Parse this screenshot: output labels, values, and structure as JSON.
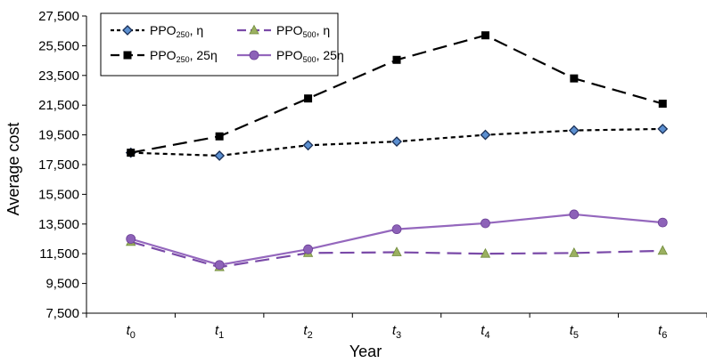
{
  "chart_data": {
    "type": "line",
    "xlabel": "Year",
    "ylabel": "Average cost",
    "categories": [
      {
        "base": "t",
        "sub": "0"
      },
      {
        "base": "t",
        "sub": "1"
      },
      {
        "base": "t",
        "sub": "2"
      },
      {
        "base": "t",
        "sub": "3"
      },
      {
        "base": "t",
        "sub": "4"
      },
      {
        "base": "t",
        "sub": "5"
      },
      {
        "base": "t",
        "sub": "6"
      }
    ],
    "y_ticks": [
      "7,500",
      "9,500",
      "11,500",
      "13,500",
      "15,500",
      "17,500",
      "19,500",
      "21,500",
      "23,500",
      "25,500",
      "27,500"
    ],
    "ylim": [
      7500,
      27500
    ],
    "grid": false,
    "legend_position": "top-left",
    "series": [
      {
        "name": {
          "base": "PPO",
          "sub": "250",
          "suffix": ", η"
        },
        "values": [
          18300,
          18100,
          18800,
          19050,
          19500,
          19800,
          19900
        ],
        "color": "#000000",
        "marker": "diamond",
        "marker_color": "#5b8fd0",
        "line_style": "short-dash"
      },
      {
        "name": {
          "base": "PPO",
          "sub": "250",
          "suffix": ", 25η"
        },
        "values": [
          18300,
          19400,
          21950,
          24550,
          26200,
          23300,
          21600
        ],
        "color": "#000000",
        "marker": "square",
        "marker_color": "#000000",
        "line_style": "long-dash"
      },
      {
        "name": {
          "base": "PPO",
          "sub": "500",
          "suffix": ", η"
        },
        "values": [
          12300,
          10600,
          11550,
          11600,
          11500,
          11550,
          11700
        ],
        "color": "#7a4aa8",
        "marker": "triangle",
        "marker_color": "#9bb060",
        "line_style": "long-dash"
      },
      {
        "name": {
          "base": "PPO",
          "sub": "500",
          "suffix": ", 25η"
        },
        "values": [
          12500,
          10750,
          11800,
          13150,
          13550,
          14150,
          13600
        ],
        "color": "#9467bd",
        "marker": "circle",
        "marker_color": "#8d62b8",
        "line_style": "solid"
      }
    ]
  }
}
